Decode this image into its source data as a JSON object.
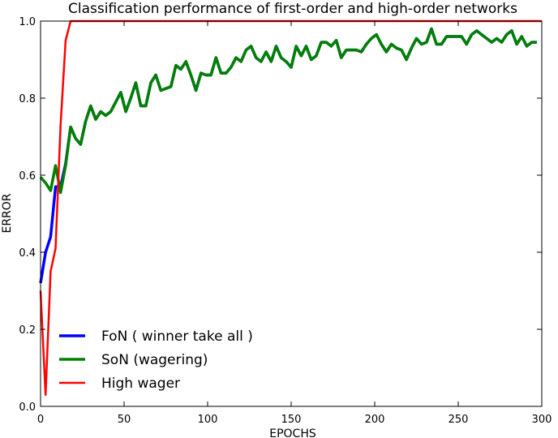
{
  "chart_data": {
    "type": "line",
    "title": "Classification performance of first-order and high-order networks",
    "xlabel": "EPOCHS",
    "ylabel": "ERROR",
    "xlim": [
      0,
      300
    ],
    "ylim": [
      0,
      1.0
    ],
    "xticks": [
      0,
      50,
      100,
      150,
      200,
      250,
      300
    ],
    "yticks": [
      0.0,
      0.2,
      0.4,
      0.6,
      0.8,
      1.0
    ],
    "xtick_labels": [
      "0",
      "50",
      "100",
      "150",
      "200",
      "250",
      "300"
    ],
    "ytick_labels": [
      "0.0",
      "0.2",
      "0.4",
      "0.6",
      "0.8",
      "1.0"
    ],
    "grid": false,
    "legend_position": "lower-left",
    "series": [
      {
        "name": "FoN ( winner take all )",
        "color": "#0000ff",
        "x": [
          0,
          3,
          6,
          9,
          12,
          15,
          18,
          21,
          24,
          27,
          30,
          33,
          36,
          39,
          42,
          45,
          48,
          51,
          54,
          57,
          60,
          63,
          66,
          69,
          72,
          75,
          78,
          81,
          84,
          87,
          90,
          93,
          96,
          99,
          102,
          105,
          108,
          111,
          114,
          117,
          120,
          123,
          126,
          129,
          132,
          135,
          138,
          141,
          144,
          147,
          150,
          153,
          156,
          159,
          162,
          165,
          168,
          171,
          174,
          177,
          180,
          183,
          186,
          189,
          192,
          195,
          198,
          201,
          204,
          207,
          210,
          213,
          216,
          219,
          222,
          225,
          228,
          231,
          234,
          237,
          240,
          243,
          246,
          249,
          252,
          255,
          258,
          261,
          264,
          267,
          270,
          273,
          276,
          279,
          282,
          285,
          288,
          291,
          294,
          297
        ],
        "values": [
          0.32,
          0.4,
          0.44,
          0.57,
          0.57,
          0.63,
          0.725,
          0.695,
          0.68,
          0.74,
          0.78,
          0.745,
          0.765,
          0.755,
          0.765,
          0.79,
          0.815,
          0.765,
          0.8,
          0.84,
          0.78,
          0.78,
          0.84,
          0.86,
          0.82,
          0.825,
          0.83,
          0.885,
          0.875,
          0.895,
          0.86,
          0.82,
          0.865,
          0.86,
          0.86,
          0.905,
          0.865,
          0.865,
          0.88,
          0.905,
          0.895,
          0.925,
          0.935,
          0.905,
          0.895,
          0.92,
          0.895,
          0.935,
          0.905,
          0.895,
          0.88,
          0.935,
          0.91,
          0.935,
          0.9,
          0.91,
          0.945,
          0.945,
          0.935,
          0.95,
          0.905,
          0.925,
          0.925,
          0.925,
          0.92,
          0.94,
          0.955,
          0.965,
          0.94,
          0.92,
          0.94,
          0.93,
          0.925,
          0.9,
          0.93,
          0.955,
          0.94,
          0.945,
          0.98,
          0.94,
          0.94,
          0.96,
          0.96,
          0.96,
          0.96,
          0.94,
          0.965,
          0.975,
          0.965,
          0.955,
          0.945,
          0.955,
          0.945,
          0.965,
          0.975,
          0.94,
          0.96,
          0.935,
          0.945,
          0.945
        ]
      },
      {
        "name": "SoN (wagering)",
        "color": "#008000",
        "x": [
          0,
          3,
          6,
          9,
          12,
          15,
          18,
          21,
          24,
          27,
          30,
          33,
          36,
          39,
          42,
          45,
          48,
          51,
          54,
          57,
          60,
          63,
          66,
          69,
          72,
          75,
          78,
          81,
          84,
          87,
          90,
          93,
          96,
          99,
          102,
          105,
          108,
          111,
          114,
          117,
          120,
          123,
          126,
          129,
          132,
          135,
          138,
          141,
          144,
          147,
          150,
          153,
          156,
          159,
          162,
          165,
          168,
          171,
          174,
          177,
          180,
          183,
          186,
          189,
          192,
          195,
          198,
          201,
          204,
          207,
          210,
          213,
          216,
          219,
          222,
          225,
          228,
          231,
          234,
          237,
          240,
          243,
          246,
          249,
          252,
          255,
          258,
          261,
          264,
          267,
          270,
          273,
          276,
          279,
          282,
          285,
          288,
          291,
          294,
          297
        ],
        "values": [
          0.595,
          0.58,
          0.56,
          0.625,
          0.555,
          0.625,
          0.725,
          0.695,
          0.68,
          0.74,
          0.78,
          0.745,
          0.765,
          0.755,
          0.765,
          0.79,
          0.815,
          0.765,
          0.8,
          0.84,
          0.78,
          0.78,
          0.84,
          0.86,
          0.82,
          0.825,
          0.83,
          0.885,
          0.875,
          0.895,
          0.86,
          0.82,
          0.865,
          0.86,
          0.86,
          0.905,
          0.865,
          0.865,
          0.88,
          0.905,
          0.895,
          0.925,
          0.935,
          0.905,
          0.895,
          0.92,
          0.895,
          0.935,
          0.905,
          0.895,
          0.88,
          0.935,
          0.91,
          0.935,
          0.9,
          0.91,
          0.945,
          0.945,
          0.935,
          0.95,
          0.905,
          0.925,
          0.925,
          0.925,
          0.92,
          0.94,
          0.955,
          0.965,
          0.94,
          0.92,
          0.94,
          0.93,
          0.925,
          0.9,
          0.93,
          0.955,
          0.94,
          0.945,
          0.98,
          0.94,
          0.94,
          0.96,
          0.96,
          0.96,
          0.96,
          0.94,
          0.965,
          0.975,
          0.965,
          0.955,
          0.945,
          0.955,
          0.945,
          0.965,
          0.975,
          0.94,
          0.96,
          0.935,
          0.945,
          0.945
        ]
      },
      {
        "name": "High wager",
        "color": "#ff0000",
        "x": [
          0,
          3,
          6,
          9,
          12,
          15,
          18,
          21,
          300
        ],
        "values": [
          0.3,
          0.03,
          0.35,
          0.41,
          0.73,
          0.95,
          1.0,
          1.0,
          1.0
        ]
      }
    ]
  }
}
